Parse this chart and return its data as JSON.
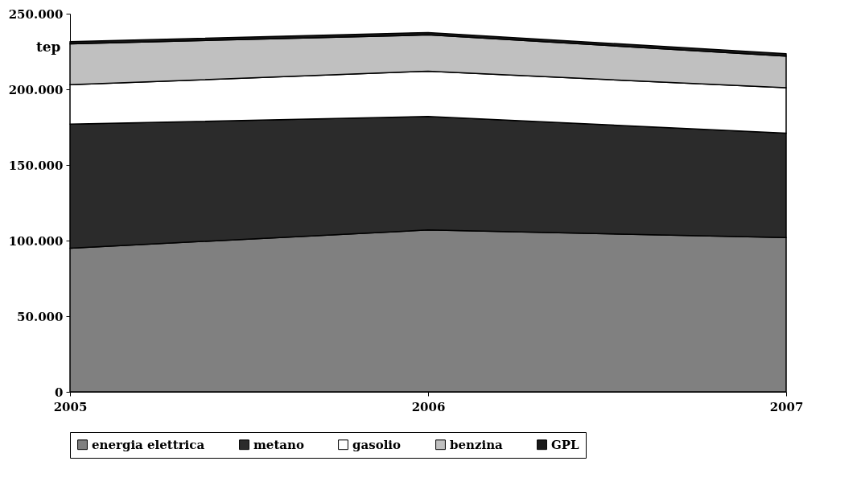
{
  "chart_data": {
    "type": "area",
    "stacked": true,
    "ylabel": "tep",
    "categories": [
      "2005",
      "2006",
      "2007"
    ],
    "series": [
      {
        "name": "energia elettrica",
        "color": "#808080",
        "values": [
          95000,
          107000,
          102000
        ]
      },
      {
        "name": "metano",
        "color": "#2b2b2b",
        "values": [
          82000,
          75000,
          69000
        ]
      },
      {
        "name": "gasolio",
        "color": "#ffffff",
        "values": [
          26000,
          30000,
          30000
        ]
      },
      {
        "name": "benzina",
        "color": "#c0c0c0",
        "values": [
          27000,
          24000,
          21000
        ]
      },
      {
        "name": "GPL",
        "color": "#1a1a1a",
        "values": [
          1500,
          1500,
          1500
        ]
      }
    ],
    "ylim": [
      0,
      250000
    ],
    "yticks": [
      {
        "value": 0,
        "label": "0"
      },
      {
        "value": 50000,
        "label": "50.000"
      },
      {
        "value": 100000,
        "label": "100.000"
      },
      {
        "value": 150000,
        "label": "150.000"
      },
      {
        "value": 200000,
        "label": "200.000"
      },
      {
        "value": 250000,
        "label": "250.000"
      }
    ],
    "grid": false,
    "legend": "bottom"
  }
}
